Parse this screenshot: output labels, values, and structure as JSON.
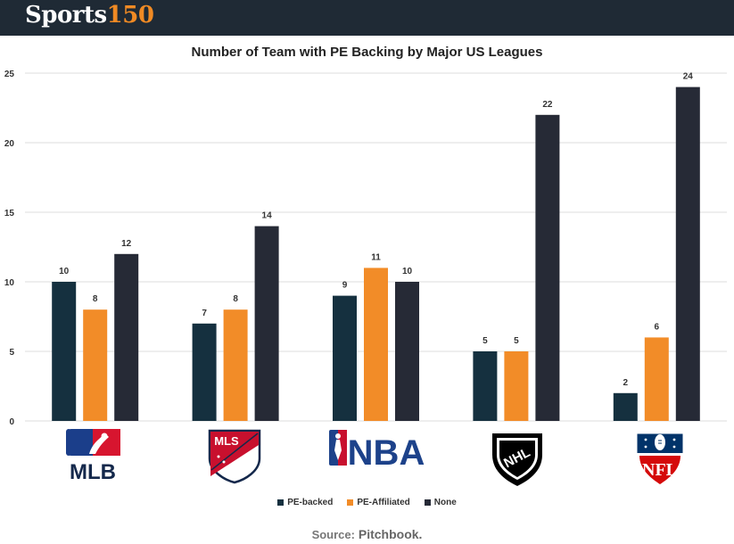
{
  "brand": {
    "name": "Sports",
    "number": "150"
  },
  "source": {
    "prefix": "Source:",
    "value": "Pitchbook."
  },
  "colors": {
    "pe_backed": "#15303f",
    "pe_affiliated": "#f28c28",
    "none": "#262a36",
    "grid": "#dddddd",
    "brand_accent": "#f08a24",
    "header_bg": "#1f2a35"
  },
  "chart_data": {
    "type": "bar",
    "title": "Number of Team with PE Backing by Major US Leagues",
    "categories": [
      "MLB",
      "MLS",
      "NBA",
      "NHL",
      "NFL"
    ],
    "series": [
      {
        "name": "PE-backed",
        "values": [
          10,
          7,
          9,
          5,
          2
        ]
      },
      {
        "name": "PE-Affiliated",
        "values": [
          8,
          8,
          11,
          5,
          6
        ]
      },
      {
        "name": "None",
        "values": [
          12,
          14,
          10,
          22,
          24
        ]
      }
    ],
    "ylim": [
      0,
      25
    ],
    "yticks": [
      0,
      5,
      10,
      15,
      20,
      25
    ],
    "xlabel": "",
    "ylabel": "",
    "legend_position": "bottom",
    "grid": true
  },
  "logos": {
    "mlb": "MLB",
    "mls": "MLS",
    "nba": "NBA",
    "nhl": "NHL",
    "nfl": "NFL"
  }
}
